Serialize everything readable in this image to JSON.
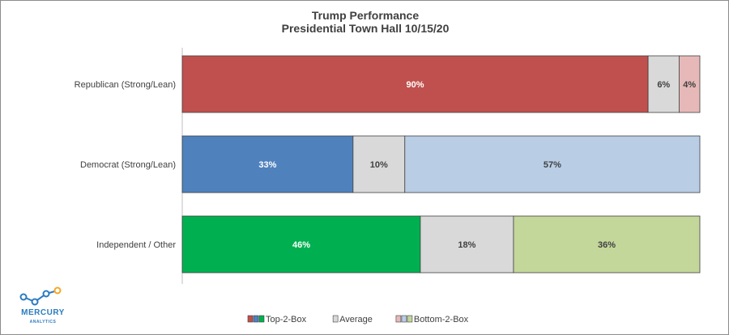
{
  "chart_data": {
    "type": "bar",
    "orientation": "horizontal",
    "stacked": true,
    "normalized": true,
    "title": "Trump Performance",
    "subtitle": "Presidential Town Hall 10/15/20",
    "xlim": [
      0,
      100
    ],
    "grid": false,
    "legend_position": "bottom",
    "categories": [
      "Republican (Strong/Lean)",
      "Democrat (Strong/Lean)",
      "Independent / Other"
    ],
    "series": [
      {
        "name": "Top-2-Box",
        "values": [
          90,
          33,
          46
        ],
        "labels": [
          "90%",
          "33%",
          "46%"
        ],
        "colors": [
          "#c0504d",
          "#4f81bd",
          "#00b050"
        ],
        "label_color": "#ffffff"
      },
      {
        "name": "Average",
        "values": [
          6,
          10,
          18
        ],
        "labels": [
          "6%",
          "10%",
          "18%"
        ],
        "colors": [
          "#d9d9d9",
          "#d9d9d9",
          "#d9d9d9"
        ],
        "label_color": "#404040"
      },
      {
        "name": "Bottom-2-Box",
        "values": [
          4,
          57,
          36
        ],
        "labels": [
          "4%",
          "57%",
          "36%"
        ],
        "colors": [
          "#e6b9b8",
          "#b9cde5",
          "#c4d79b"
        ],
        "label_color": "#404040"
      }
    ],
    "legend": [
      {
        "name": "Top-2-Box",
        "swatches": [
          "#c0504d",
          "#4f81bd",
          "#00b050"
        ]
      },
      {
        "name": "Average",
        "swatches": [
          "#d9d9d9"
        ]
      },
      {
        "name": "Bottom-2-Box",
        "swatches": [
          "#e6b9b8",
          "#b9cde5",
          "#c4d79b"
        ]
      }
    ]
  },
  "logo": {
    "name": "MERCURY",
    "tagline": "ANALYTICS",
    "color": "#2b7bbf",
    "accent_color": "#f5a623"
  }
}
